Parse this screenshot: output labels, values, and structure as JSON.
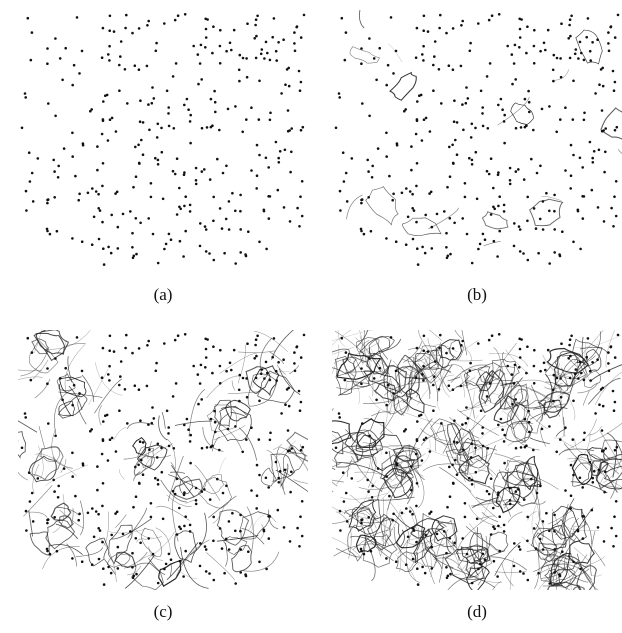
{
  "panels": [
    {
      "id": "a",
      "caption": "(a)",
      "density": 0
    },
    {
      "id": "b",
      "caption": "(b)",
      "density": 1
    },
    {
      "id": "c",
      "caption": "(c)",
      "density": 2
    },
    {
      "id": "d",
      "caption": "(d)",
      "density": 3
    }
  ],
  "colors": {
    "dot": "#111111",
    "stroke": "#222222",
    "background": "#ffffff"
  }
}
